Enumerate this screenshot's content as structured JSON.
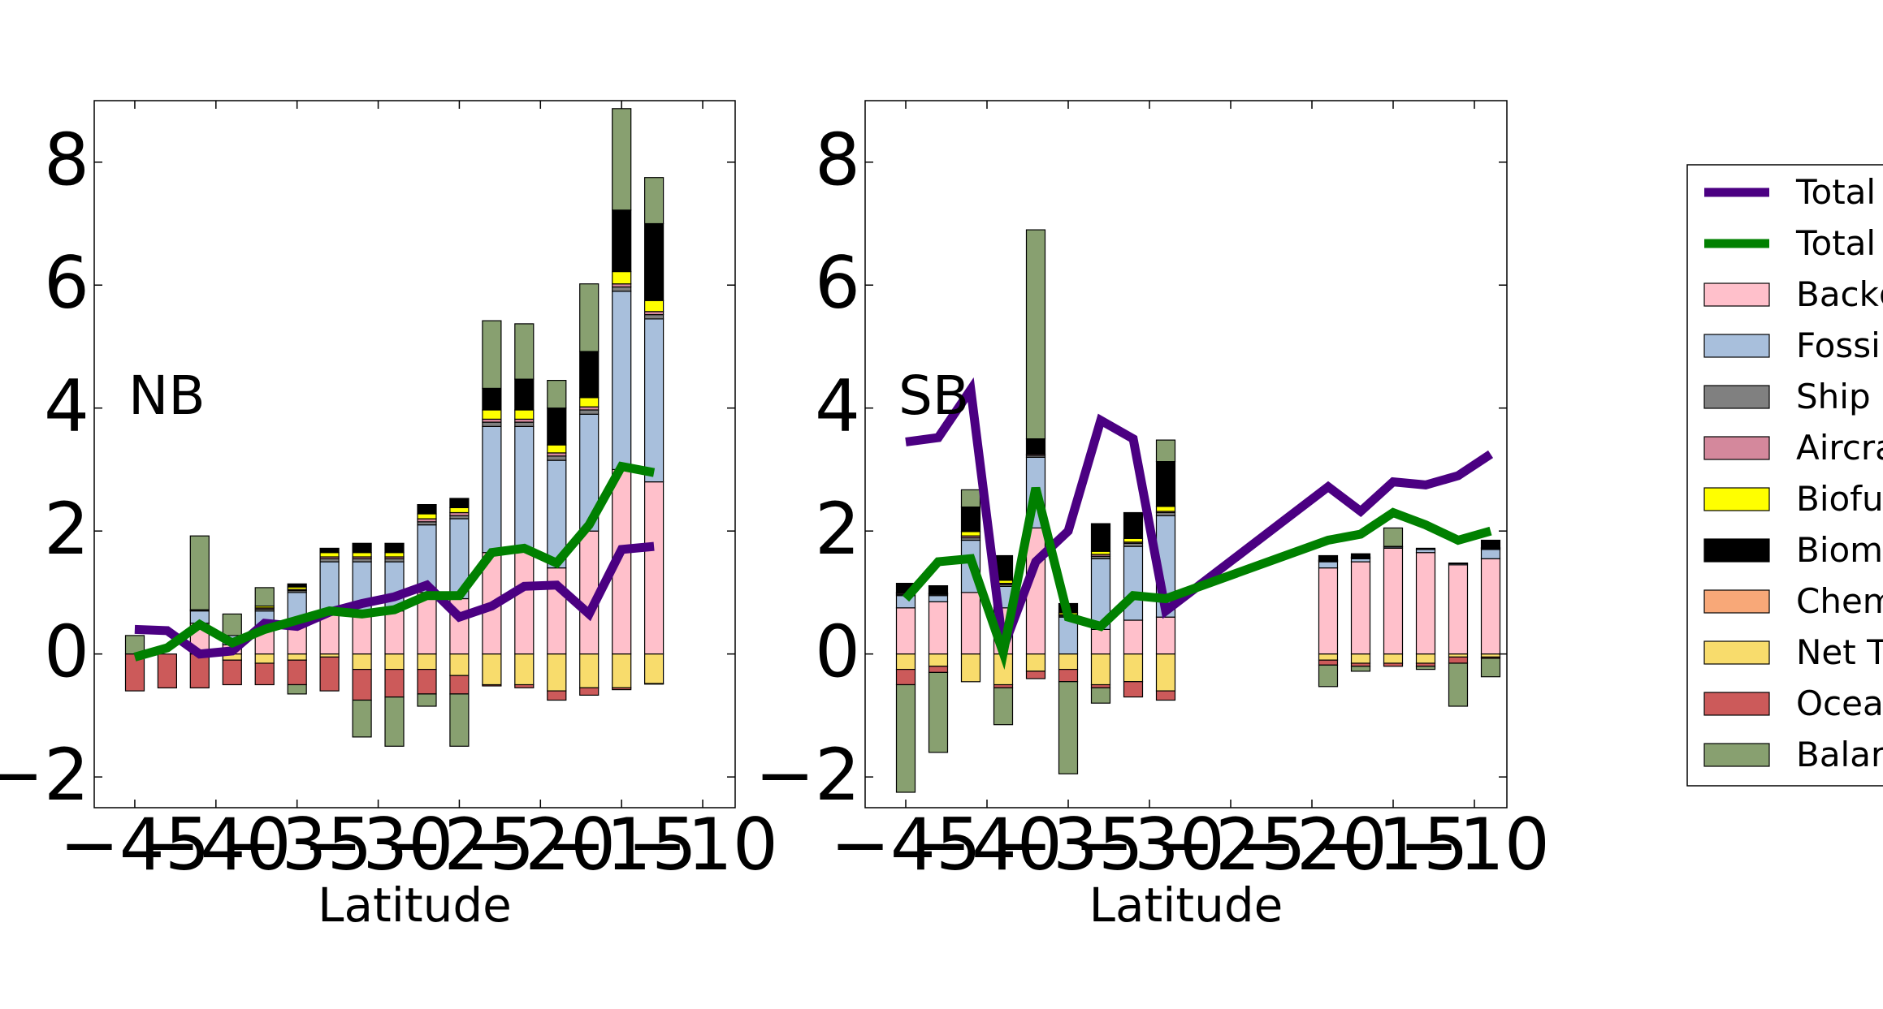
{
  "figure": {
    "xlabel_left": "Latitude",
    "xlabel_right": "Latitude"
  },
  "legend": {
    "placement": "right, clipped by figure edge",
    "entries": [
      {
        "label": "Total",
        "kind": "line",
        "color": "#4b0082"
      },
      {
        "label": "Total",
        "kind": "line",
        "color": "#008000"
      },
      {
        "label": "Backg",
        "kind": "patch",
        "color": "#ffc0cb"
      },
      {
        "label": "Fossi",
        "kind": "patch",
        "color": "#a8bfdc"
      },
      {
        "label": "Ship",
        "kind": "patch",
        "color": "#808080"
      },
      {
        "label": "Aircra",
        "kind": "patch",
        "color": "#d4889c"
      },
      {
        "label": "Biofu",
        "kind": "patch",
        "color": "#ffff00"
      },
      {
        "label": "Biom",
        "kind": "patch",
        "color": "#000000"
      },
      {
        "label": "Chem",
        "kind": "patch",
        "color": "#f8a878"
      },
      {
        "label": "Net T",
        "kind": "patch",
        "color": "#f8dc6c"
      },
      {
        "label": "Ocea",
        "kind": "patch",
        "color": "#cc5a5a"
      },
      {
        "label": "Balar",
        "kind": "patch",
        "color": "#88a070"
      }
    ]
  },
  "chart_data": [
    {
      "type": "bar",
      "panel_label": "NB",
      "xlabel": "Latitude",
      "ylabel": "",
      "xlim": [
        -47.5,
        -8
      ],
      "ylim": [
        -2.5,
        9
      ],
      "xticks": [
        -45,
        -40,
        -35,
        -30,
        -25,
        -20,
        -15,
        -10
      ],
      "xtick_labels": [
        "−45",
        "−40",
        "−35",
        "−30",
        "−25",
        "−20",
        "−15",
        "−10"
      ],
      "yticks": [
        -2,
        0,
        2,
        4,
        6,
        8
      ],
      "ytick_labels": [
        "−2",
        "0",
        "2",
        "4",
        "6",
        "8"
      ],
      "grid": false,
      "bar_width": 1.15,
      "component_colors": {
        "bg": "#ffc0cb",
        "fossil": "#a8bfdc",
        "ship": "#808080",
        "aircraft": "#d4889c",
        "biofuel": "#ffff00",
        "biomass": "#000000",
        "chem": "#f8a878",
        "nett": "#f8dc6c",
        "ocean": "#cc5a5a",
        "bal": "#88a070"
      },
      "stack_order_pos": [
        "bg",
        "fossil",
        "ship",
        "aircraft",
        "biofuel",
        "biomass",
        "chem",
        "bal"
      ],
      "stack_order_neg": [
        "nett",
        "ocean",
        "bal"
      ],
      "bars": [
        {
          "x": -45,
          "bg": 0,
          "fossil": 0,
          "ship": 0,
          "aircraft": 0,
          "biofuel": 0,
          "biomass": 0,
          "chem": 0,
          "nett": 0,
          "ocean": -0.6,
          "bal": 0.3
        },
        {
          "x": -43,
          "bg": 0,
          "fossil": 0,
          "ship": 0,
          "aircraft": 0,
          "biofuel": 0,
          "biomass": 0,
          "chem": 0,
          "nett": 0,
          "ocean": -0.55,
          "bal": 0
        },
        {
          "x": -41,
          "bg": 0.5,
          "fossil": 0.2,
          "ship": 0.02,
          "aircraft": 0,
          "biofuel": 0,
          "biomass": 0,
          "chem": 0,
          "nett": 0,
          "ocean": -0.55,
          "bal": 1.2
        },
        {
          "x": -39,
          "bg": 0.15,
          "fossil": 0.15,
          "ship": 0,
          "aircraft": 0,
          "biofuel": 0,
          "biomass": 0,
          "chem": 0,
          "nett": -0.1,
          "ocean": -0.4,
          "bal": 0.35
        },
        {
          "x": -37,
          "bg": 0.45,
          "fossil": 0.25,
          "ship": 0.03,
          "aircraft": 0.02,
          "biofuel": 0.03,
          "biomass": 0,
          "chem": 0,
          "nett": -0.15,
          "ocean": -0.35,
          "bal": 0.3
        },
        {
          "x": -35,
          "bg": 0.45,
          "fossil": 0.55,
          "ship": 0.03,
          "aircraft": 0.02,
          "biofuel": 0.04,
          "biomass": 0.05,
          "chem": 0,
          "nett": -0.1,
          "ocean": -0.4,
          "bal": -0.15
        },
        {
          "x": -33,
          "bg": 0.7,
          "fossil": 0.8,
          "ship": 0.05,
          "aircraft": 0.03,
          "biofuel": 0.07,
          "biomass": 0.07,
          "chem": 0,
          "nett": -0.05,
          "ocean": -0.55,
          "bal": 0
        },
        {
          "x": -31,
          "bg": 0.65,
          "fossil": 0.85,
          "ship": 0.05,
          "aircraft": 0.03,
          "biofuel": 0.07,
          "biomass": 0.15,
          "chem": 0,
          "nett": -0.25,
          "ocean": -0.5,
          "bal": -0.6
        },
        {
          "x": -29,
          "bg": 0.7,
          "fossil": 0.8,
          "ship": 0.05,
          "aircraft": 0.03,
          "biofuel": 0.07,
          "biomass": 0.15,
          "chem": 0,
          "nett": -0.25,
          "ocean": -0.45,
          "bal": -0.8
        },
        {
          "x": -27,
          "bg": 1.0,
          "fossil": 1.1,
          "ship": 0.05,
          "aircraft": 0.05,
          "biofuel": 0.08,
          "biomass": 0.15,
          "chem": 0,
          "nett": -0.25,
          "ocean": -0.4,
          "bal": -0.2
        },
        {
          "x": -25,
          "bg": 0.9,
          "fossil": 1.3,
          "ship": 0.05,
          "aircraft": 0.05,
          "biofuel": 0.08,
          "biomass": 0.15,
          "chem": 0,
          "nett": -0.35,
          "ocean": -0.3,
          "bal": -0.85
        },
        {
          "x": -23,
          "bg": 1.65,
          "fossil": 2.05,
          "ship": 0.07,
          "aircraft": 0.05,
          "biofuel": 0.15,
          "biomass": 0.35,
          "chem": 0,
          "nett": -0.5,
          "ocean": -0.02,
          "bal": 1.1
        },
        {
          "x": -21,
          "bg": 1.7,
          "fossil": 2.0,
          "ship": 0.07,
          "aircraft": 0.05,
          "biofuel": 0.15,
          "biomass": 0.5,
          "chem": 0,
          "nett": -0.5,
          "ocean": -0.05,
          "bal": 0.9
        },
        {
          "x": -19,
          "bg": 1.4,
          "fossil": 1.75,
          "ship": 0.07,
          "aircraft": 0.05,
          "biofuel": 0.13,
          "biomass": 0.6,
          "chem": 0,
          "nett": -0.6,
          "ocean": -0.15,
          "bal": 0.45
        },
        {
          "x": -17,
          "bg": 2.0,
          "fossil": 1.9,
          "ship": 0.07,
          "aircraft": 0.05,
          "biofuel": 0.15,
          "biomass": 0.75,
          "chem": 0,
          "nett": -0.55,
          "ocean": -0.12,
          "bal": 1.1
        },
        {
          "x": -15,
          "bg": 3.0,
          "fossil": 2.9,
          "ship": 0.07,
          "aircraft": 0.05,
          "biofuel": 0.2,
          "biomass": 1.0,
          "chem": 0,
          "nett": -0.55,
          "ocean": -0.03,
          "bal": 1.65
        },
        {
          "x": -13,
          "bg": 2.8,
          "fossil": 2.65,
          "ship": 0.07,
          "aircraft": 0.05,
          "biofuel": 0.18,
          "biomass": 1.25,
          "chem": 0,
          "nett": -0.48,
          "ocean": -0.01,
          "bal": 0.75
        }
      ],
      "series": [
        {
          "color": "#4b0082",
          "x": [
            -45,
            -43,
            -41,
            -39,
            -37,
            -35,
            -33,
            -31,
            -29,
            -27,
            -25,
            -23,
            -21,
            -19,
            -17,
            -15,
            -13
          ],
          "y": [
            0.4,
            0.38,
            0.0,
            0.05,
            0.5,
            0.45,
            0.68,
            0.82,
            0.93,
            1.12,
            0.6,
            0.78,
            1.1,
            1.12,
            0.65,
            1.7,
            1.75
          ]
        },
        {
          "color": "#008000",
          "x": [
            -45,
            -43,
            -41,
            -39,
            -37,
            -35,
            -33,
            -31,
            -29,
            -27,
            -25,
            -23,
            -21,
            -19,
            -17,
            -15,
            -13
          ],
          "y": [
            -0.05,
            0.1,
            0.48,
            0.18,
            0.4,
            0.55,
            0.7,
            0.65,
            0.72,
            0.95,
            0.95,
            1.65,
            1.72,
            1.48,
            2.1,
            3.05,
            2.95
          ]
        }
      ]
    },
    {
      "type": "bar",
      "panel_label": "SB",
      "xlabel": "Latitude",
      "ylabel": "",
      "xlim": [
        -47.5,
        -8
      ],
      "ylim": [
        -2.5,
        9
      ],
      "xticks": [
        -45,
        -40,
        -35,
        -30,
        -25,
        -20,
        -15,
        -10
      ],
      "xtick_labels": [
        "−45",
        "−40",
        "−35",
        "−30",
        "−25",
        "−20",
        "−15",
        "−10"
      ],
      "yticks": [
        -2,
        0,
        2,
        4,
        6,
        8
      ],
      "ytick_labels": [
        "−2",
        "0",
        "2",
        "4",
        "6",
        "8"
      ],
      "grid": false,
      "bar_width": 1.15,
      "component_colors": {
        "bg": "#ffc0cb",
        "fossil": "#a8bfdc",
        "ship": "#808080",
        "aircraft": "#d4889c",
        "biofuel": "#ffff00",
        "biomass": "#000000",
        "chem": "#f8a878",
        "nett": "#f8dc6c",
        "ocean": "#cc5a5a",
        "bal": "#88a070"
      },
      "stack_order_pos": [
        "bg",
        "fossil",
        "ship",
        "aircraft",
        "biofuel",
        "biomass",
        "chem",
        "bal"
      ],
      "stack_order_neg": [
        "nett",
        "ocean",
        "bal"
      ],
      "bars": [
        {
          "x": -45,
          "bg": 0.75,
          "fossil": 0.2,
          "ship": 0.02,
          "aircraft": 0.02,
          "biofuel": 0.01,
          "biomass": 0.15,
          "chem": 0,
          "nett": -0.25,
          "ocean": -0.25,
          "bal": -1.75
        },
        {
          "x": -43,
          "bg": 0.85,
          "fossil": 0.1,
          "ship": 0.02,
          "aircraft": 0.01,
          "biofuel": 0.01,
          "biomass": 0.12,
          "chem": 0,
          "nett": -0.2,
          "ocean": -0.1,
          "bal": -1.3
        },
        {
          "x": -41,
          "bg": 1.0,
          "fossil": 0.85,
          "ship": 0.04,
          "aircraft": 0.03,
          "biofuel": 0.07,
          "biomass": 0.4,
          "chem": 0,
          "nett": -0.45,
          "ocean": 0,
          "bal": 0.28
        },
        {
          "x": -39,
          "bg": 0.75,
          "fossil": 0.35,
          "ship": 0.03,
          "aircraft": 0.02,
          "biofuel": 0.05,
          "biomass": 0.4,
          "chem": 0,
          "nett": -0.5,
          "ocean": -0.05,
          "bal": -0.6
        },
        {
          "x": -37,
          "bg": 2.05,
          "fossil": 1.15,
          "ship": 0.03,
          "aircraft": 0.02,
          "biofuel": 0,
          "biomass": 0.25,
          "chem": 0,
          "nett": -0.28,
          "ocean": -0.12,
          "bal": 3.4
        },
        {
          "x": -35,
          "bg": 0,
          "fossil": 0.6,
          "ship": 0.02,
          "aircraft": 0.02,
          "biofuel": 0.03,
          "biomass": 0.15,
          "chem": 0,
          "nett": -0.25,
          "ocean": -0.2,
          "bal": -1.5
        },
        {
          "x": -33,
          "bg": 0.4,
          "fossil": 1.15,
          "ship": 0.04,
          "aircraft": 0.03,
          "biofuel": 0.05,
          "biomass": 0.45,
          "chem": 0,
          "nett": -0.5,
          "ocean": -0.05,
          "bal": -0.25
        },
        {
          "x": -31,
          "bg": 0.55,
          "fossil": 1.2,
          "ship": 0.05,
          "aircraft": 0.02,
          "biofuel": 0.06,
          "biomass": 0.42,
          "chem": 0,
          "nett": -0.45,
          "ocean": -0.25,
          "bal": 0
        },
        {
          "x": -29,
          "bg": 0.6,
          "fossil": 1.65,
          "ship": 0.05,
          "aircraft": 0.02,
          "biofuel": 0.08,
          "biomass": 0.73,
          "chem": 0,
          "nett": -0.6,
          "ocean": -0.15,
          "bal": 0.35
        },
        {
          "x": -19,
          "bg": 1.4,
          "fossil": 0.1,
          "ship": 0.01,
          "aircraft": 0.01,
          "biofuel": 0.01,
          "biomass": 0.07,
          "chem": 0,
          "nett": -0.1,
          "ocean": -0.08,
          "bal": -0.35
        },
        {
          "x": -17,
          "bg": 1.5,
          "fossil": 0.05,
          "ship": 0.01,
          "aircraft": 0.01,
          "biofuel": 0.01,
          "biomass": 0.05,
          "chem": 0,
          "nett": -0.15,
          "ocean": -0.05,
          "bal": -0.08
        },
        {
          "x": -15,
          "bg": 1.72,
          "fossil": 0.02,
          "ship": 0,
          "aircraft": 0,
          "biofuel": 0,
          "biomass": 0.01,
          "chem": 0,
          "nett": -0.15,
          "ocean": -0.05,
          "bal": 0.3
        },
        {
          "x": -13,
          "bg": 1.65,
          "fossil": 0.05,
          "ship": 0,
          "aircraft": 0,
          "biofuel": 0,
          "biomass": 0.02,
          "chem": 0,
          "nett": -0.15,
          "ocean": -0.05,
          "bal": -0.05
        },
        {
          "x": -11,
          "bg": 1.45,
          "fossil": 0.02,
          "ship": 0,
          "aircraft": 0,
          "biofuel": 0,
          "biomass": 0.01,
          "chem": 0,
          "nett": -0.05,
          "ocean": -0.1,
          "bal": -0.7
        },
        {
          "x": -9,
          "bg": 1.55,
          "fossil": 0.15,
          "ship": 0.01,
          "aircraft": 0.01,
          "biofuel": 0.01,
          "biomass": 0.12,
          "chem": 0,
          "nett": -0.05,
          "ocean": -0.02,
          "bal": -0.3
        }
      ],
      "series": [
        {
          "color": "#4b0082",
          "x": [
            -45,
            -43,
            -41,
            -39,
            -37,
            -35,
            -33,
            -31,
            -29,
            -19,
            -17,
            -15,
            -13,
            -11,
            -9
          ],
          "y": [
            3.45,
            3.52,
            4.3,
            0.1,
            1.5,
            2.0,
            3.8,
            3.5,
            0.7,
            2.72,
            2.32,
            2.8,
            2.75,
            2.9,
            3.25
          ]
        },
        {
          "color": "#008000",
          "x": [
            -45,
            -43,
            -41,
            -39,
            -37,
            -35,
            -33,
            -31,
            -29,
            -19,
            -17,
            -15,
            -13,
            -11,
            -9
          ],
          "y": [
            0.9,
            1.5,
            1.55,
            0.02,
            2.7,
            0.6,
            0.45,
            0.95,
            0.9,
            1.85,
            1.95,
            2.3,
            2.1,
            1.85,
            2.0
          ]
        }
      ]
    }
  ]
}
